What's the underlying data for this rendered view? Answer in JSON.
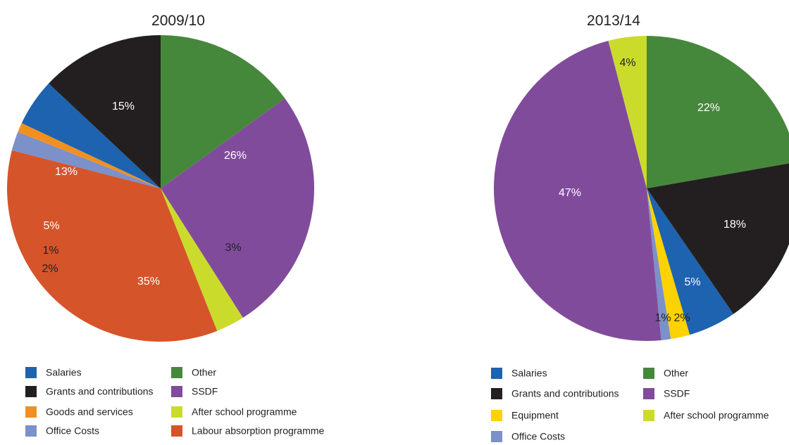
{
  "chart_data": [
    {
      "type": "pie",
      "title": "2009/10",
      "slices": [
        {
          "label": "Other",
          "value": 15,
          "text": "15%",
          "color": "#46883b"
        },
        {
          "label": "SSDF",
          "value": 26,
          "text": "26%",
          "color": "#814b9c"
        },
        {
          "label": "After school programme",
          "value": 3,
          "text": "3%",
          "color": "#cbdb2c"
        },
        {
          "label": "Labour absorption programme",
          "value": 35,
          "text": "35%",
          "color": "#d5542a"
        },
        {
          "label": "Office Costs",
          "value": 2,
          "text": "2%",
          "color": "#7c90c9"
        },
        {
          "label": "Goods and services",
          "value": 1,
          "text": "1%",
          "color": "#f2901f"
        },
        {
          "label": "Salaries",
          "value": 5,
          "text": "5%",
          "color": "#1d63af"
        },
        {
          "label": "Grants and contributions",
          "value": 13,
          "text": "13%",
          "color": "#231f20"
        }
      ],
      "legend": [
        {
          "label": "Salaries",
          "color": "#1d63af"
        },
        {
          "label": "Grants and contributions",
          "color": "#231f20"
        },
        {
          "label": "Goods and services",
          "color": "#f2901f"
        },
        {
          "label": "Office Costs",
          "color": "#7c90c9"
        },
        {
          "label": "Other",
          "color": "#46883b"
        },
        {
          "label": "SSDF",
          "color": "#814b9c"
        },
        {
          "label": "After school programme",
          "color": "#cbdb2c"
        },
        {
          "label": "Labour absorption programme",
          "color": "#d5542a"
        }
      ],
      "legend_placement": "bottom"
    },
    {
      "type": "pie",
      "title": "2013/14",
      "slices": [
        {
          "label": "Other",
          "value": 22,
          "text": "22%",
          "color": "#46883b"
        },
        {
          "label": "Grants and contributions",
          "value": 18,
          "text": "18%",
          "color": "#231f20"
        },
        {
          "label": "Salaries",
          "value": 5,
          "text": "5%",
          "color": "#1d63af"
        },
        {
          "label": "Equipment",
          "value": 2,
          "text": "2%",
          "color": "#fcd200"
        },
        {
          "label": "Office Costs",
          "value": 1,
          "text": "1%",
          "color": "#7c90c9"
        },
        {
          "label": "SSDF",
          "value": 47,
          "text": "47%",
          "color": "#814b9c"
        },
        {
          "label": "After school programme",
          "value": 4,
          "text": "4%",
          "color": "#cbdb2c"
        }
      ],
      "legend": [
        {
          "label": "Salaries",
          "color": "#1d63af"
        },
        {
          "label": "Grants and contributions",
          "color": "#231f20"
        },
        {
          "label": "Equipment",
          "color": "#fcd200"
        },
        {
          "label": "Office Costs",
          "color": "#7c90c9"
        },
        {
          "label": "Other",
          "color": "#46883b"
        },
        {
          "label": "SSDF",
          "color": "#814b9c"
        },
        {
          "label": "After school programme",
          "color": "#cbdb2c"
        }
      ],
      "legend_placement": "bottom"
    }
  ]
}
